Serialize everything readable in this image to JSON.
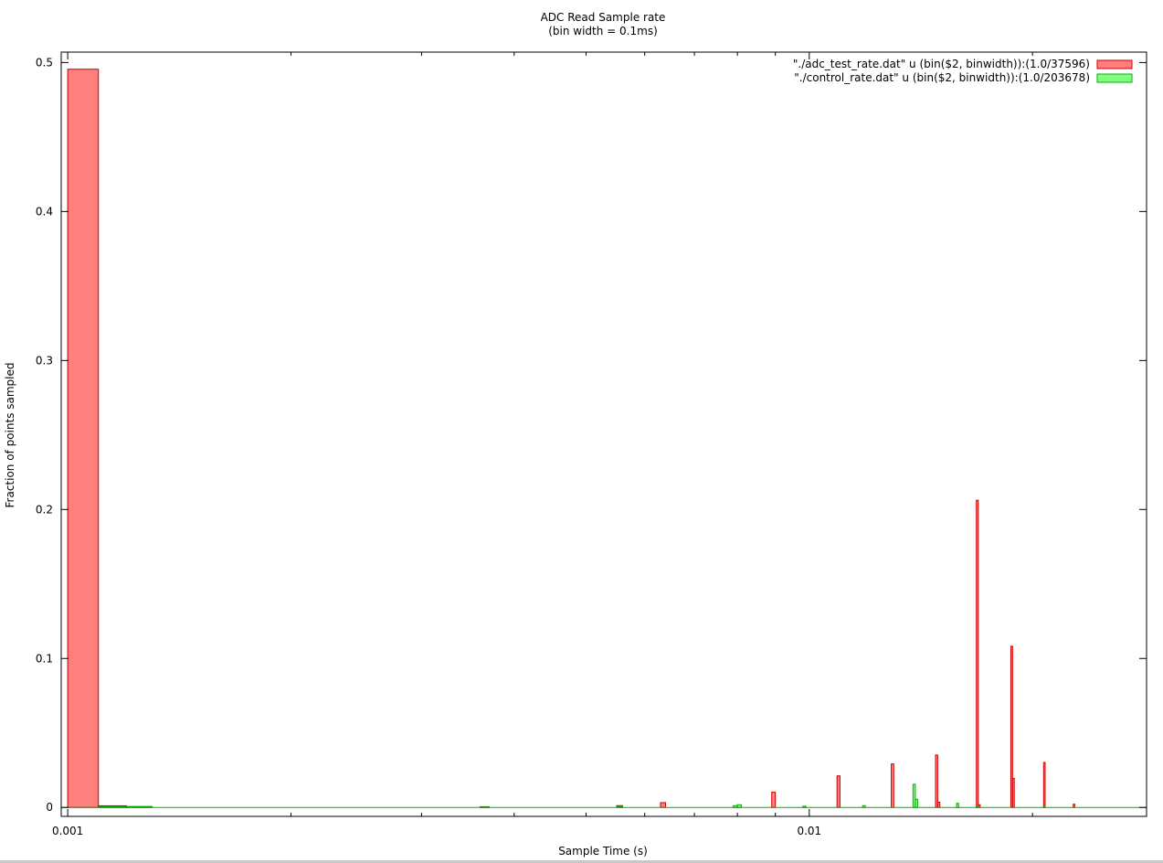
{
  "chart_data": {
    "type": "bar",
    "title": "ADC Read Sample rate",
    "subtitle": "(bin width = 0.1ms)",
    "xlabel": "Sample Time (s)",
    "ylabel": "Fraction of points sampled",
    "x_scale": "log",
    "xlim": [
      0.00098,
      0.0285
    ],
    "ylim": [
      -0.006,
      0.507
    ],
    "x_ticks": [
      {
        "value": 0.001,
        "label": "0.001"
      },
      {
        "value": 0.01,
        "label": "0.01"
      }
    ],
    "x_minor_ticks": [
      0.002,
      0.003,
      0.004,
      0.005,
      0.006,
      0.007,
      0.008,
      0.009,
      0.02
    ],
    "y_ticks": [
      {
        "value": 0,
        "label": "0"
      },
      {
        "value": 0.1,
        "label": "0.1"
      },
      {
        "value": 0.2,
        "label": "0.2"
      },
      {
        "value": 0.3,
        "label": "0.3"
      },
      {
        "value": 0.4,
        "label": "0.4"
      },
      {
        "value": 0.5,
        "label": "0.5"
      }
    ],
    "bin_width": 0.0001,
    "grid": false,
    "legend_position": "top-right",
    "series": [
      {
        "name": "\"./adc_test_rate.dat\" u (bin($2, binwidth)):(1.0/37596)",
        "color": "#ff7f7f",
        "edge_color": "#cc0000",
        "bins": [
          {
            "x": 0.001,
            "y": 0.4955
          },
          {
            "x": 0.0011,
            "y": 0.0011
          },
          {
            "x": 0.0012,
            "y": 0.0006
          },
          {
            "x": 0.0036,
            "y": 0.0005
          },
          {
            "x": 0.0055,
            "y": 0.0012
          },
          {
            "x": 0.0063,
            "y": 0.0032
          },
          {
            "x": 0.0079,
            "y": 0.0005
          },
          {
            "x": 0.0089,
            "y": 0.0102
          },
          {
            "x": 0.0109,
            "y": 0.0212
          },
          {
            "x": 0.0129,
            "y": 0.0292
          },
          {
            "x": 0.0148,
            "y": 0.0352
          },
          {
            "x": 0.0149,
            "y": 0.0035
          },
          {
            "x": 0.0168,
            "y": 0.2062
          },
          {
            "x": 0.0169,
            "y": 0.0018
          },
          {
            "x": 0.0187,
            "y": 0.1082
          },
          {
            "x": 0.0188,
            "y": 0.0195
          },
          {
            "x": 0.0207,
            "y": 0.0302
          },
          {
            "x": 0.0227,
            "y": 0.0022
          }
        ]
      },
      {
        "name": "\"./control_rate.dat\" u (bin($2, binwidth)):(1.0/203678)",
        "color": "#80ff80",
        "edge_color": "#00b000",
        "bins": [
          {
            "x": 0.0011,
            "y": 0.0004
          },
          {
            "x": 0.0012,
            "y": 0.0005
          },
          {
            "x": 0.0036,
            "y": 0.0003
          },
          {
            "x": 0.0055,
            "y": 0.0004
          },
          {
            "x": 0.0079,
            "y": 0.0012
          },
          {
            "x": 0.008,
            "y": 0.0018
          },
          {
            "x": 0.0098,
            "y": 0.0008
          },
          {
            "x": 0.0118,
            "y": 0.0012
          },
          {
            "x": 0.0138,
            "y": 0.0155
          },
          {
            "x": 0.0139,
            "y": 0.0055
          },
          {
            "x": 0.0158,
            "y": 0.0028
          },
          {
            "x": 0.0168,
            "y": 0.0006
          },
          {
            "x": 0.0207,
            "y": 0.0004
          }
        ]
      }
    ]
  }
}
